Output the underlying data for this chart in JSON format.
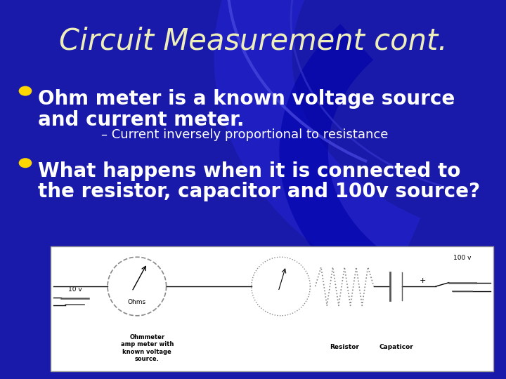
{
  "title": "Circuit Measurement cont.",
  "title_color": "#EEEEBB",
  "title_fontsize": 30,
  "bg_color_top": "#0000CC",
  "bg_color": "#1111BB",
  "bullet_color": "#FFD700",
  "bullet1_line1": "Ohm meter is a known voltage source",
  "bullet1_line2": "and current meter.",
  "sub_bullet": "– Current inversely proportional to resistance",
  "bullet2_line1": "What happens when it is connected to",
  "bullet2_line2": "the resistor, capacitor and 100v source?",
  "bullet_fontsize": 20,
  "sub_fontsize": 13,
  "diagram_label_ohm": "Ohms",
  "diagram_label_ohmmeter": "Ohmmeter\namp meter with\nknown voltage\nsource.",
  "diagram_label_10v": "10 v",
  "diagram_label_resistor": "Resistor",
  "diagram_label_capacitor": "Capaticor",
  "diagram_label_100v": "100 v",
  "diagram_label_plus": "+"
}
